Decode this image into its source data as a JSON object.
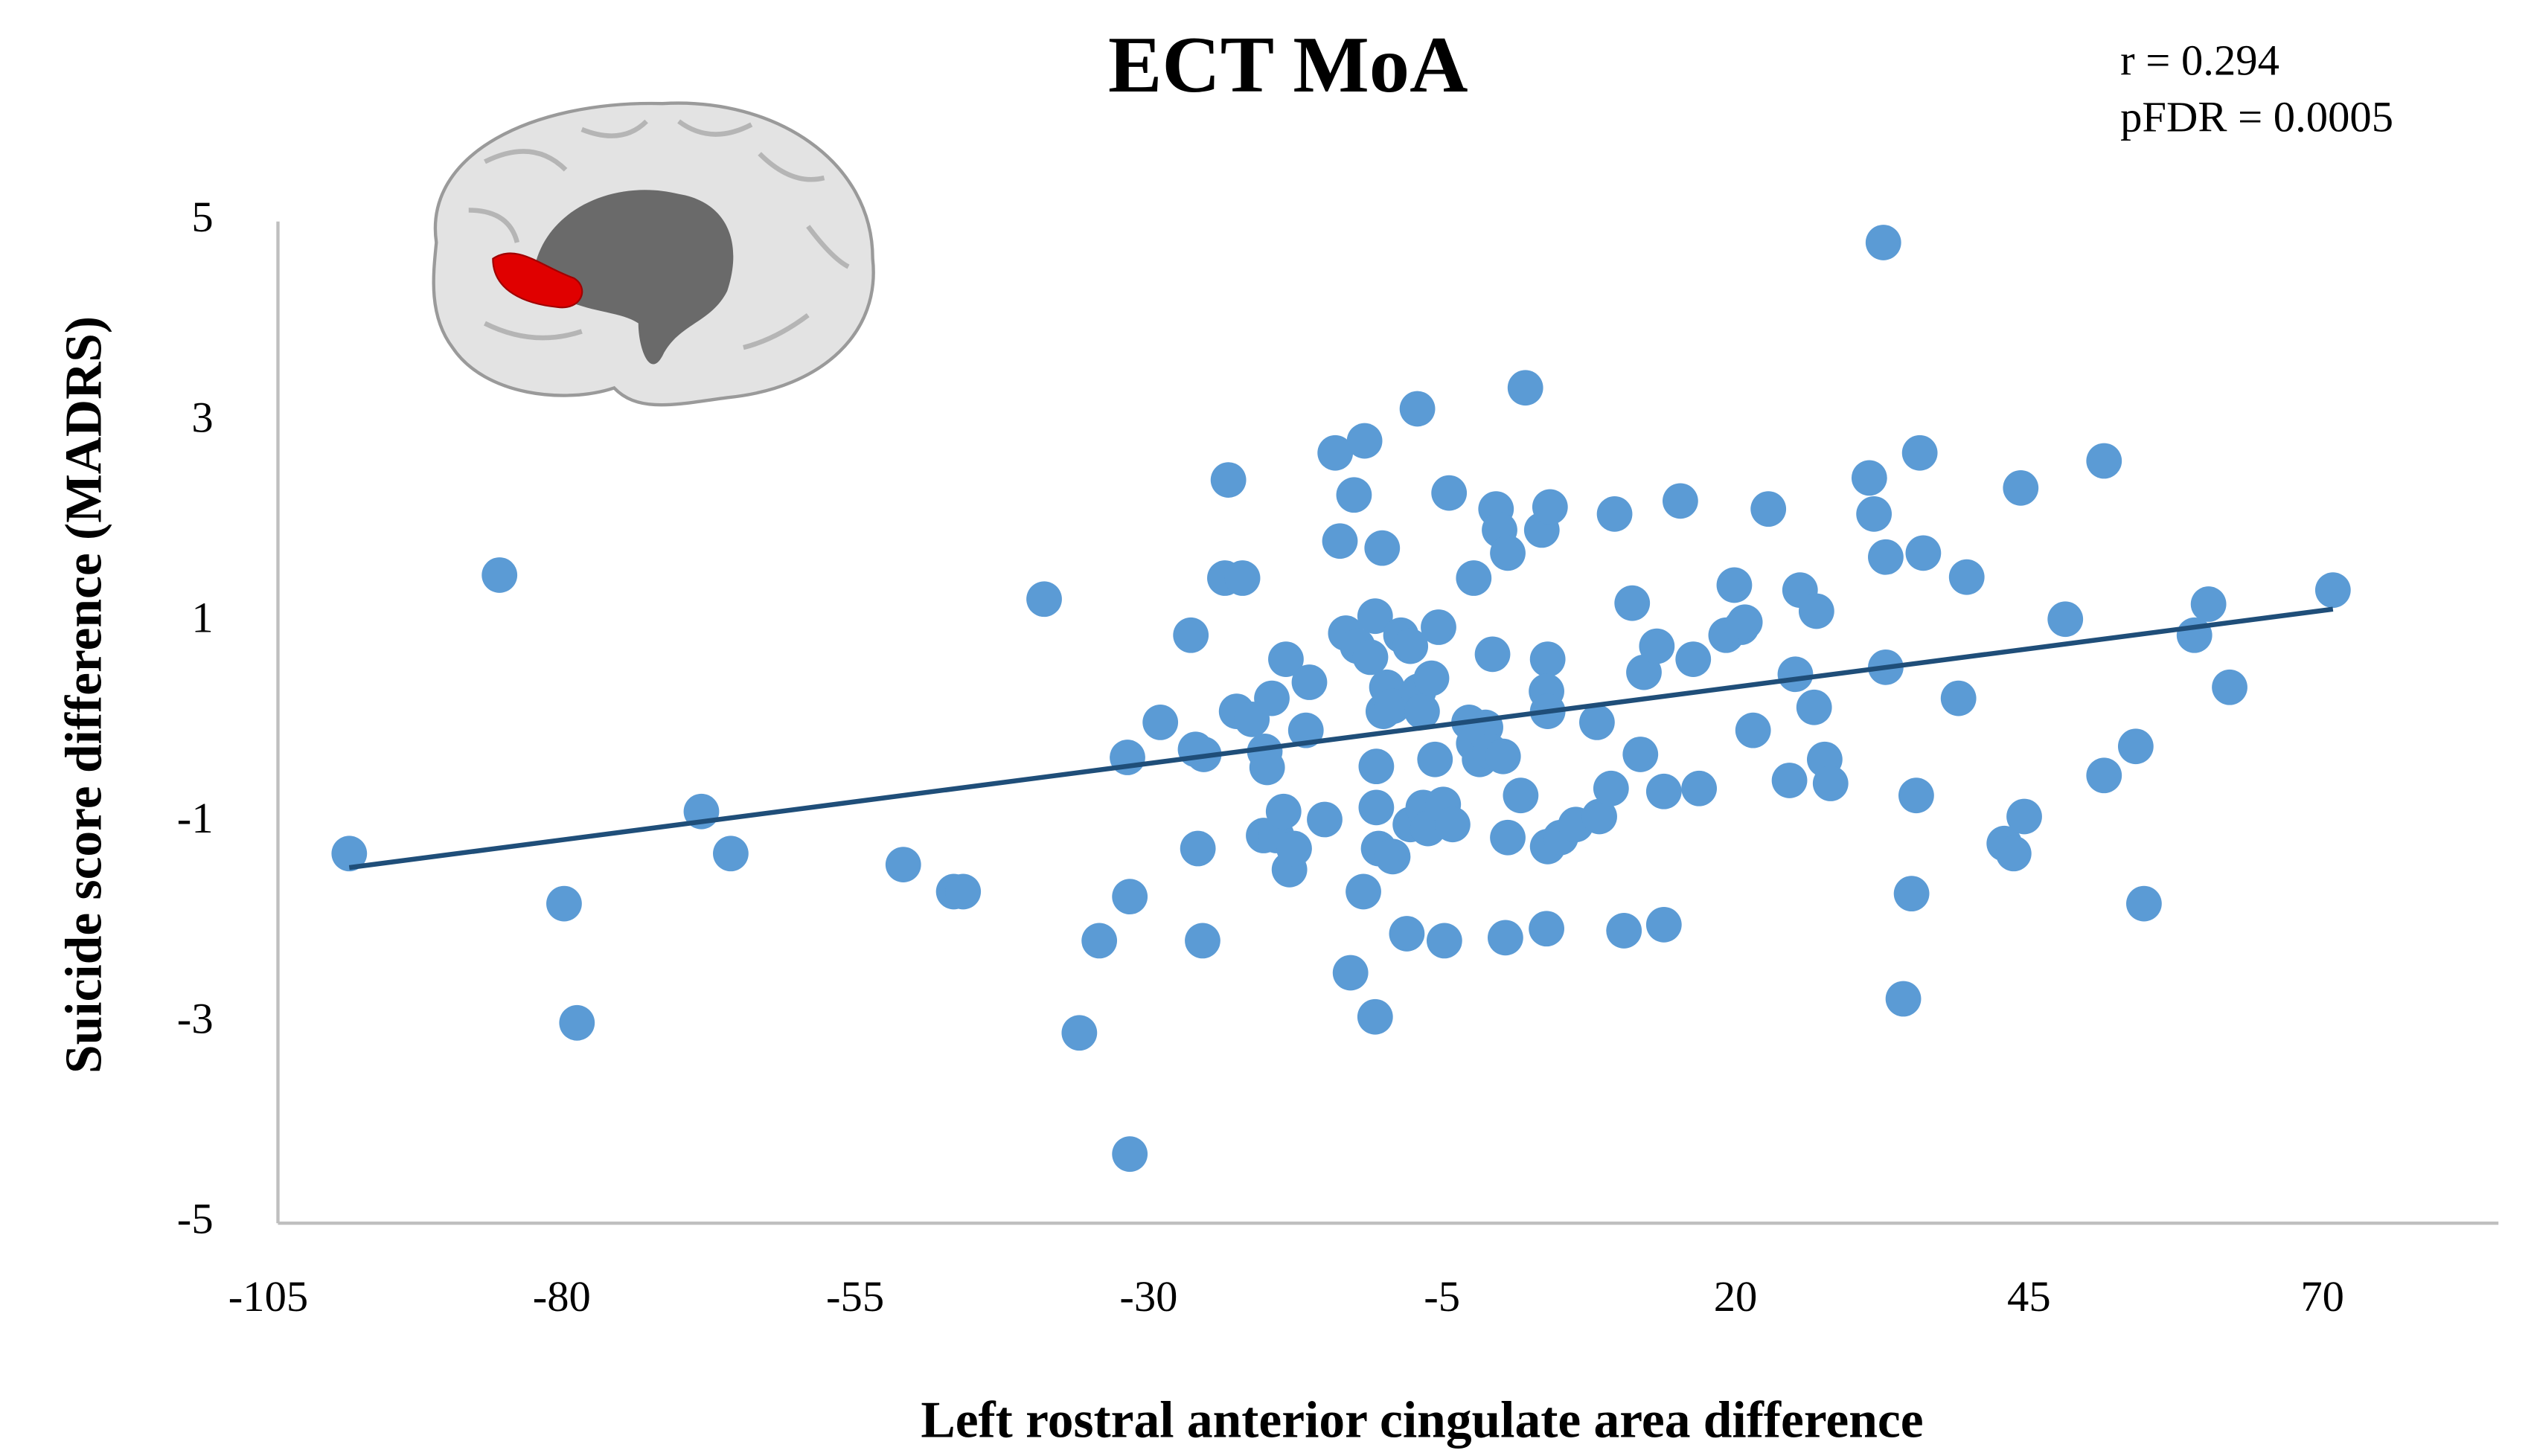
{
  "chart_data": {
    "type": "scatter",
    "title": "ECT MoA",
    "x_label": "Left rostral  anterior  cingulate area difference",
    "y_label": "Suicide score difference (MADRS)",
    "annotations": [
      "r = 0.294",
      "pFDR = 0.0005"
    ],
    "xlim": [
      -105,
      85
    ],
    "xticks": [
      -105,
      -80,
      -55,
      -30,
      -5,
      20,
      45,
      70
    ],
    "ylim": [
      -5,
      5
    ],
    "yticks": [
      -5,
      -3,
      -1,
      1,
      3,
      5
    ],
    "series": [
      {
        "color": "#5b9bd5",
        "x": [
          -98.1,
          -85.3,
          -79.8,
          -78.7,
          -68.1,
          -65.6,
          -50.9,
          -46.6,
          -45.8,
          -38.9,
          -35.9,
          -34.2,
          -31.6,
          -31.6,
          -31.8,
          -29.0,
          -26.4,
          -25.8,
          -25.4,
          -26.0,
          -25.3,
          -23.2,
          -23.5,
          -22.0,
          -22.5,
          -21.2,
          -20.1,
          -19.5,
          -19.9,
          -20.2,
          -19.1,
          -18.3,
          -18.5,
          -18.0,
          -17.6,
          -16.6,
          -16.3,
          -15.0,
          -14.1,
          -13.7,
          -13.2,
          -12.5,
          -12.2,
          -11.6,
          -11.7,
          -12.8,
          -11.1,
          -10.7,
          -10.1,
          -10.6,
          -10.6,
          -10.4,
          -10.7,
          -10.0,
          -9.7,
          -9.2,
          -9.2,
          -8.5,
          -8.0,
          -7.7,
          -7.7,
          -7.1,
          -7.0,
          -6.7,
          -6.6,
          -6.2,
          -5.9,
          -5.6,
          -5.3,
          -4.9,
          -4.8,
          -4.4,
          -4.1,
          -2.7,
          -2.3,
          -2.3,
          -1.8,
          -1.3,
          -0.9,
          -0.7,
          -0.4,
          -0.1,
          0.2,
          0.4,
          0.6,
          0.6,
          1.7,
          2.1,
          3.5,
          3.9,
          4.0,
          4.2,
          4.0,
          3.9,
          4.0,
          5.1,
          6.4,
          8.2,
          8.4,
          9.4,
          9.7,
          10.5,
          11.2,
          11.9,
          12.2,
          13.3,
          13.9,
          13.9,
          15.3,
          16.4,
          16.9,
          19.2,
          19.9,
          20.5,
          20.8,
          21.5,
          22.8,
          24.6,
          25.1,
          25.5,
          26.7,
          26.9,
          27.6,
          28.1,
          31.4,
          31.8,
          32.6,
          32.8,
          32.8,
          34.3,
          35.0,
          35.4,
          35.7,
          36.0,
          39.0,
          39.7,
          42.9,
          43.7,
          44.3,
          44.6,
          48.1,
          51.4,
          51.4,
          54.1,
          54.8,
          59.1,
          60.3,
          62.1,
          70.9
        ],
        "y": [
          -1.31,
          1.47,
          -1.81,
          -3.0,
          -0.89,
          -1.31,
          -1.42,
          -1.69,
          -1.69,
          1.23,
          -3.1,
          -2.18,
          -4.31,
          -1.74,
          -0.35,
          0.0,
          0.87,
          -1.26,
          -2.18,
          -0.27,
          -0.32,
          2.42,
          1.44,
          1.44,
          0.11,
          0.03,
          -0.29,
          0.24,
          -0.45,
          -1.13,
          -1.13,
          0.63,
          -0.89,
          -1.47,
          -1.26,
          -0.08,
          0.4,
          -0.97,
          2.69,
          1.81,
          0.89,
          2.27,
          0.76,
          2.81,
          -1.69,
          -2.5,
          0.65,
          1.06,
          1.74,
          -0.44,
          -0.85,
          -1.26,
          -2.94,
          0.11,
          0.35,
          -1.34,
          0.16,
          0.87,
          -2.11,
          0.76,
          -1.02,
          3.13,
          0.31,
          0.11,
          -0.85,
          -1.06,
          0.44,
          -0.37,
          0.95,
          -0.82,
          -2.18,
          2.29,
          -1.02,
          0.0,
          1.44,
          -0.21,
          -0.37,
          -0.05,
          -0.29,
          0.68,
          2.13,
          1.92,
          -0.34,
          -2.15,
          1.69,
          -1.15,
          -0.73,
          3.34,
          1.92,
          -2.06,
          -1.24,
          2.15,
          0.63,
          0.31,
          0.11,
          -1.15,
          -1.02,
          0.0,
          -0.94,
          -0.66,
          2.08,
          -2.08,
          1.19,
          -0.32,
          0.5,
          0.76,
          -0.69,
          -2.02,
          2.21,
          0.63,
          -0.66,
          0.87,
          1.37,
          0.95,
          1.0,
          -0.08,
          2.13,
          -0.58,
          0.48,
          1.32,
          0.15,
          1.11,
          -0.37,
          -0.61,
          2.44,
          2.08,
          4.79,
          0.55,
          1.65,
          -2.76,
          -1.71,
          -0.73,
          2.69,
          1.69,
          0.24,
          1.45,
          -1.21,
          -1.31,
          2.34,
          -0.94,
          1.03,
          -0.53,
          2.61,
          -0.24,
          -1.81,
          0.87,
          1.18,
          0.35,
          1.32
        ]
      }
    ],
    "trend": {
      "color": "#1f4e79",
      "x": [
        -98.1,
        70.9
      ],
      "y": [
        -1.45,
        1.13
      ]
    }
  }
}
